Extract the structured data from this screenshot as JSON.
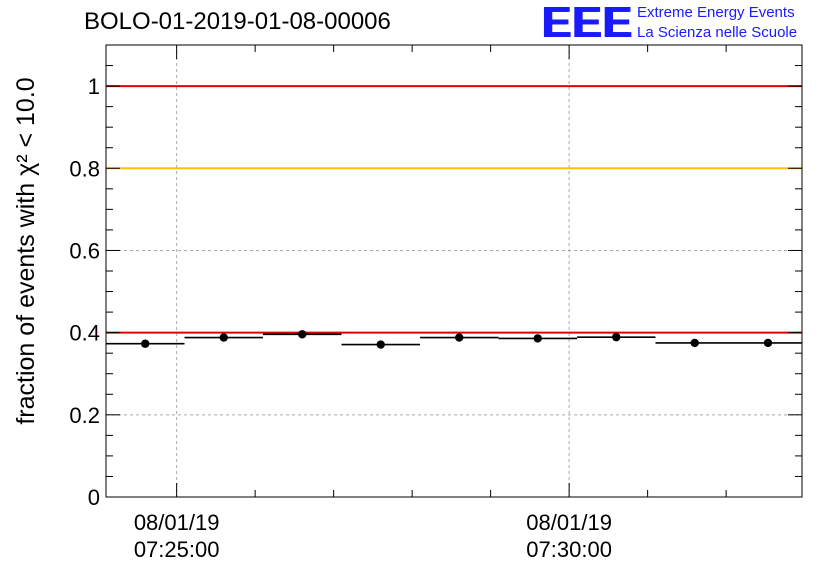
{
  "header": {
    "title": "BOLO-01-2019-01-08-00006"
  },
  "logo": {
    "mark": "EEE",
    "line1": "Extreme Energy Events",
    "line2": "La Scienza nelle Scuole"
  },
  "chart_data": {
    "type": "scatter",
    "title": "BOLO-01-2019-01-08-00006",
    "ylabel": "fraction of events with χ² < 10.0",
    "xlabel": "",
    "ylim": [
      0,
      1.1
    ],
    "grid": true,
    "y_ticks": [
      "0",
      "0.2",
      "0.4",
      "0.6",
      "0.8",
      "1"
    ],
    "x_ticks": [
      {
        "date": "08/01/19",
        "time": "07:25:00"
      },
      {
        "date": "08/01/19",
        "time": "07:30:00"
      }
    ],
    "x_range": [
      "07:24:06",
      "07:32:58"
    ],
    "series": [
      {
        "x_start": [
          "07:24:06",
          "07:25:06",
          "07:26:06",
          "07:27:06",
          "07:28:06",
          "07:29:06",
          "07:30:06",
          "07:31:06",
          "07:32:06"
        ],
        "x_end": [
          "07:25:06",
          "07:26:06",
          "07:27:06",
          "07:28:06",
          "07:29:06",
          "07:30:06",
          "07:31:06",
          "07:32:06",
          "07:32:58"
        ],
        "values": [
          0.373,
          0.388,
          0.396,
          0.371,
          0.388,
          0.386,
          0.389,
          0.375,
          0.375
        ]
      }
    ],
    "reference_lines": [
      {
        "y": 1.0,
        "color": "#e00000"
      },
      {
        "y": 0.8,
        "color": "#ffc000"
      },
      {
        "y": 0.4,
        "color": "#e00000"
      }
    ]
  }
}
